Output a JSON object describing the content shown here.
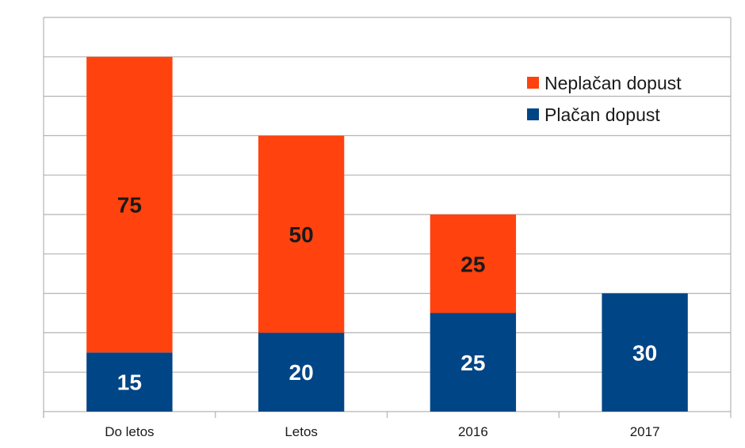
{
  "chart_data": {
    "type": "bar",
    "stacked": true,
    "categories": [
      "Do letos",
      "Letos",
      "2016",
      "2017"
    ],
    "series": [
      {
        "name": "Plačan dopust",
        "values": [
          15,
          20,
          25,
          30
        ],
        "color": "#004586",
        "label_color": "#ffffff"
      },
      {
        "name": "Neplačan dopust",
        "values": [
          75,
          50,
          25,
          0
        ],
        "color": "#ff420e",
        "label_color": "#1a1a1a"
      }
    ],
    "ylim": [
      0,
      100
    ],
    "grid": true,
    "y_tick_labels_shown": false,
    "legend": {
      "placement": "top-right",
      "entries": [
        "Neplačan dopust",
        "Plačan dopust"
      ]
    },
    "title": "",
    "xlabel": "",
    "ylabel": ""
  }
}
